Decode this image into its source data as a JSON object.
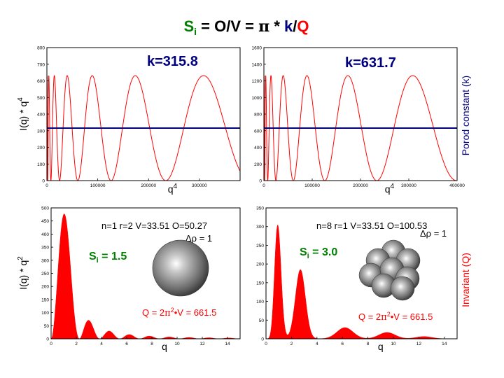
{
  "title": {
    "s_main": "S",
    "s_sub": "i",
    "rest1": " = O/V = ",
    "pi": "π",
    "rest2": " * ",
    "k": "k",
    "slash": "/",
    "Q": "Q"
  },
  "colors": {
    "curve": "#ff0000",
    "constant": "#000080",
    "green": "#008000",
    "axis": "#000000"
  },
  "chart_data": [
    {
      "id": "top-left",
      "type": "line",
      "ylabel": "I(q) * q^4",
      "xlabel": "q^4",
      "xlim": [
        0,
        380000
      ],
      "ylim": [
        0,
        800
      ],
      "xticks": [
        0,
        100000,
        200000,
        300000
      ],
      "yticks": [
        0,
        100,
        200,
        300,
        400,
        500,
        600,
        700,
        800
      ],
      "constant_value": 315.8,
      "annotation": "k=315.8",
      "series": [
        {
          "kind": "oscillation",
          "a": 1,
          "r": 1,
          "scale": 315.8
        },
        {
          "kind": "constant",
          "value": 315.8
        }
      ]
    },
    {
      "id": "top-right",
      "type": "line",
      "ylabel": "",
      "xlabel": "q^4",
      "xlim": [
        0,
        400000
      ],
      "ylim": [
        0,
        1600
      ],
      "xticks": [
        0,
        100000,
        200000,
        300000,
        400000
      ],
      "yticks": [
        0,
        200,
        400,
        600,
        800,
        1000,
        1200,
        1400,
        1600
      ],
      "constant_value": 631.7,
      "annotation": "k=631.7",
      "right_label": "Porod constant (k)",
      "series": [
        {
          "kind": "oscillation",
          "a": 1,
          "r": 1,
          "scale": 631.7
        },
        {
          "kind": "constant",
          "value": 631.7
        }
      ]
    },
    {
      "id": "bottom-left",
      "type": "area",
      "ylabel": "I(q) * q^2",
      "xlabel": "q",
      "xlim": [
        0,
        15
      ],
      "ylim": [
        0,
        500
      ],
      "xticks": [
        0,
        2,
        4,
        6,
        8,
        10,
        12,
        14
      ],
      "yticks": [
        0,
        50,
        100,
        150,
        200,
        250,
        300,
        350,
        400,
        450,
        500
      ],
      "params": "n=1 r=2 V=33.51 O=50.27",
      "delta_rho": "= 1",
      "si": "1.5",
      "invariant": "Q = 2",
      "invariant_rest": "V = 661.5",
      "series": [
        {
          "kind": "sphere",
          "r": 2,
          "peak": 477
        }
      ]
    },
    {
      "id": "bottom-right",
      "type": "area",
      "ylabel": "",
      "xlabel": "q",
      "xlim": [
        0,
        15
      ],
      "ylim": [
        0,
        350
      ],
      "xticks": [
        0,
        2,
        4,
        6,
        8,
        10,
        12,
        14
      ],
      "yticks": [
        0,
        50,
        100,
        150,
        200,
        250,
        300,
        350
      ],
      "params": "n=8 r=1 V=33.51 O=100.53",
      "delta_rho": "= 1",
      "si": "3.0",
      "invariant": "Q = 2",
      "invariant_rest": "V = 661.5",
      "right_label": "Invariant (Q)",
      "series": [
        {
          "kind": "cluster",
          "peaks": [
            [
              0.9,
              316
            ],
            [
              2.7,
              185
            ],
            [
              6.2,
              30
            ],
            [
              9.5,
              17
            ],
            [
              12.4,
              6
            ]
          ]
        }
      ]
    }
  ]
}
